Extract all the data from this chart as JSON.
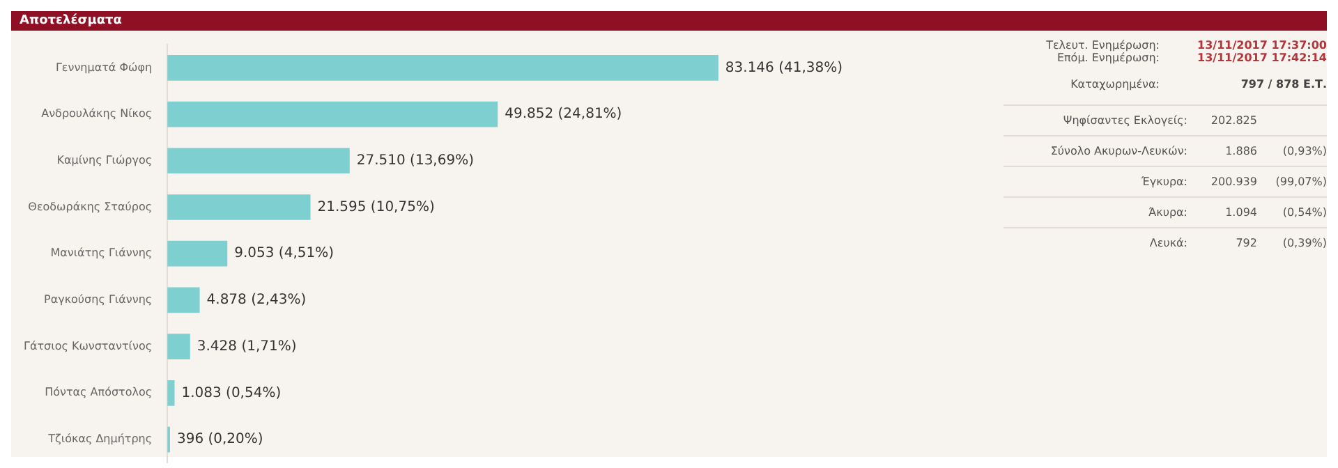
{
  "chart_data": [
    {
      "type": "bar",
      "title": "Αποτελέσματα",
      "orientation": "horizontal",
      "color": "#7ecfcf",
      "categories": [
        "Γεννηματά Φώφη",
        "Ανδρουλάκης Νίκος",
        "Καμίνης Γιώργος",
        "Θεοδωράκης Σταύρος",
        "Μανιάτης Γιάννης",
        "Ραγκούσης Γιάννης",
        "Γάτσιος Κωνσταντίνος",
        "Πόντας Απόστολος",
        "Τζιόκας Δημήτρης"
      ],
      "values": [
        83146,
        49852,
        27510,
        21595,
        9053,
        4878,
        3428,
        1083,
        396
      ],
      "value_labels": [
        "83.146 (41,38%)",
        "49.852 (24,81%)",
        "27.510 (13,69%)",
        "21.595 (10,75%)",
        "9.053 (4,51%)",
        "4.878 (2,43%)",
        "3.428 (1,71%)",
        "1.083 (0,54%)",
        "396 (0,20%)"
      ]
    },
    {
      "type": "other",
      "annotations": [
        "Τελευτ. Ενημέρωση:",
        "13/11/2017 17:37:00",
        "Επόμ. Ενημέρωση:",
        "13/11/2017 17:42:14",
        "Καταχωρημένα:",
        "797 / 878 Ε.Τ.",
        "Ψηφίσαντες Εκλογείς:",
        "202.825",
        "Σύνολο Ακυρων-Λευκών:",
        "1.886",
        "(0,93%)",
        "Έγκυρα:",
        "200.939",
        "(99,07%)",
        "Άκυρα:",
        "1.094",
        "(0,54%)",
        "Λευκά:",
        "792",
        "(0,39%)"
      ]
    }
  ]
}
